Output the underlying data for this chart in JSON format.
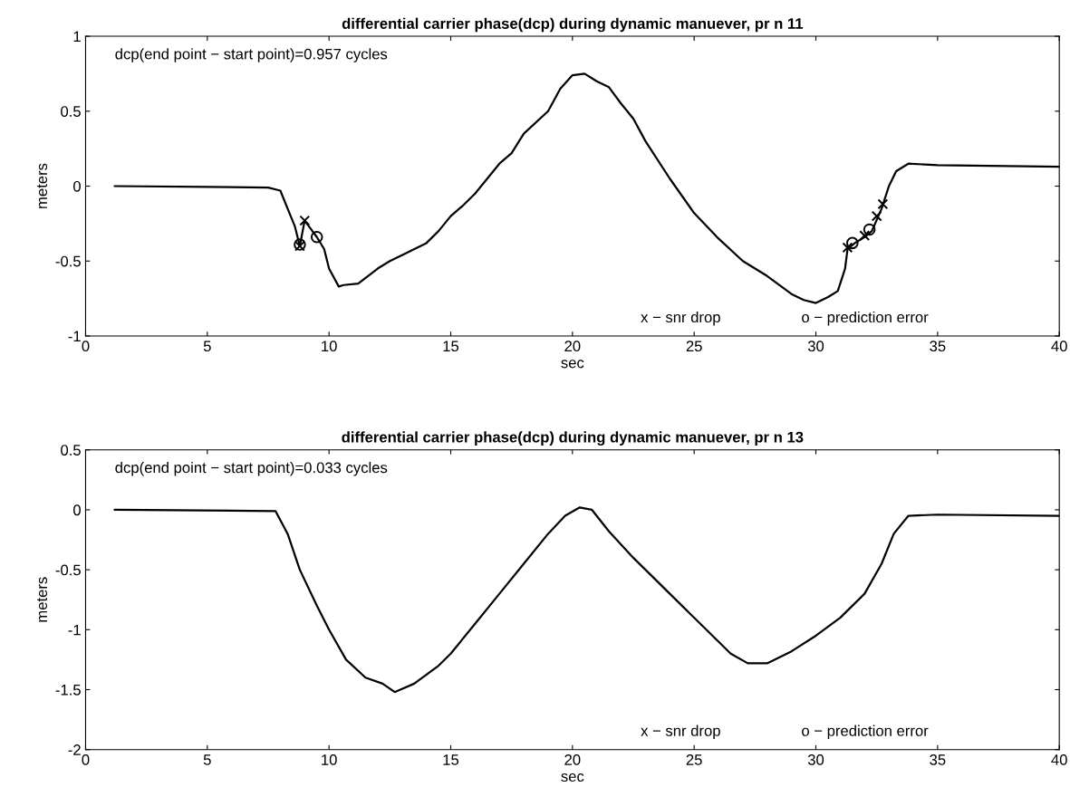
{
  "chart_data": [
    {
      "type": "line",
      "title": "differential carrier phase(dcp) during dynamic manuever, pr n 11",
      "xlabel": "sec",
      "ylabel": "meters",
      "xlim": [
        0,
        40
      ],
      "ylim": [
        -1,
        1
      ],
      "xticks": [
        0,
        5,
        10,
        15,
        20,
        25,
        30,
        35,
        40
      ],
      "yticks": [
        -1,
        -0.5,
        0,
        0.5,
        1
      ],
      "grid": false,
      "legend": false,
      "annotations": [
        "dcp(end point − start point)=0.957 cycles",
        "x − snr drop",
        "o − prediction error"
      ],
      "series": [
        {
          "color": "#000000",
          "marker": "none",
          "line_style": "solid",
          "x": [
            1.2,
            5,
            7.5,
            8.0,
            8.3,
            8.6,
            8.8,
            9.0,
            9.5,
            9.8,
            10.0,
            10.4,
            10.6,
            11.2,
            12,
            12.5,
            13,
            14,
            14.5,
            15,
            15.5,
            16,
            17,
            17.5,
            18,
            19,
            19.5,
            20,
            20.5,
            21,
            21.5,
            22,
            22.5,
            23,
            24,
            25,
            26,
            27,
            28,
            29,
            29.5,
            30,
            30.5,
            30.9,
            31.2,
            31.3,
            31.6,
            32,
            32.3,
            32.7,
            33.0,
            33.3,
            33.8,
            35,
            40
          ],
          "values": [
            0,
            -0.005,
            -0.01,
            -0.03,
            -0.15,
            -0.27,
            -0.4,
            -0.23,
            -0.34,
            -0.42,
            -0.55,
            -0.67,
            -0.66,
            -0.65,
            -0.55,
            -0.5,
            -0.46,
            -0.38,
            -0.3,
            -0.2,
            -0.13,
            -0.05,
            0.15,
            0.22,
            0.35,
            0.5,
            0.65,
            0.74,
            0.75,
            0.7,
            0.66,
            0.55,
            0.45,
            0.3,
            0.05,
            -0.18,
            -0.35,
            -0.5,
            -0.6,
            -0.72,
            -0.76,
            -0.78,
            -0.74,
            -0.7,
            -0.55,
            -0.42,
            -0.38,
            -0.34,
            -0.3,
            -0.15,
            0.0,
            0.1,
            0.15,
            0.14,
            0.13
          ]
        },
        {
          "type": "scatter",
          "color": "#000000",
          "marker": "cross",
          "x": [
            8.8,
            9.0,
            31.3,
            32.0,
            32.5,
            32.75
          ],
          "values": [
            -0.4,
            -0.23,
            -0.41,
            -0.33,
            -0.2,
            -0.12
          ]
        },
        {
          "type": "scatter",
          "color": "#000000",
          "marker": "circle",
          "x": [
            8.8,
            9.5,
            31.5,
            32.2
          ],
          "values": [
            -0.39,
            -0.34,
            -0.38,
            -0.29
          ]
        }
      ]
    },
    {
      "type": "line",
      "title": "differential carrier phase(dcp) during dynamic manuever, pr n 13",
      "xlabel": "sec",
      "ylabel": "meters",
      "xlim": [
        0,
        40
      ],
      "ylim": [
        -2,
        0.5
      ],
      "xticks": [
        0,
        5,
        10,
        15,
        20,
        25,
        30,
        35,
        40
      ],
      "yticks": [
        -2,
        -1.5,
        -1,
        -0.5,
        0,
        0.5
      ],
      "grid": false,
      "legend": false,
      "annotations": [
        "dcp(end point − start point)=0.033 cycles",
        "x − snr drop",
        "o − prediction error"
      ],
      "series": [
        {
          "color": "#000000",
          "marker": "none",
          "line_style": "solid",
          "x": [
            1.2,
            7.8,
            8.3,
            8.8,
            9.5,
            10,
            10.7,
            11.5,
            12.2,
            12.7,
            13.5,
            14.5,
            15,
            16,
            17,
            18,
            19,
            19.7,
            20.3,
            20.8,
            21.5,
            22.5,
            23.5,
            24.5,
            25.5,
            26.5,
            27.2,
            28,
            29,
            30,
            31,
            32,
            32.7,
            33.2,
            33.8,
            35,
            40
          ],
          "values": [
            0,
            -0.01,
            -0.2,
            -0.5,
            -0.8,
            -1.0,
            -1.25,
            -1.4,
            -1.45,
            -1.52,
            -1.45,
            -1.3,
            -1.2,
            -0.95,
            -0.7,
            -0.45,
            -0.2,
            -0.05,
            0.02,
            0,
            -0.18,
            -0.4,
            -0.6,
            -0.8,
            -1.0,
            -1.2,
            -1.28,
            -1.28,
            -1.18,
            -1.05,
            -0.9,
            -0.7,
            -0.45,
            -0.2,
            -0.05,
            -0.04,
            -0.05
          ]
        }
      ]
    }
  ]
}
